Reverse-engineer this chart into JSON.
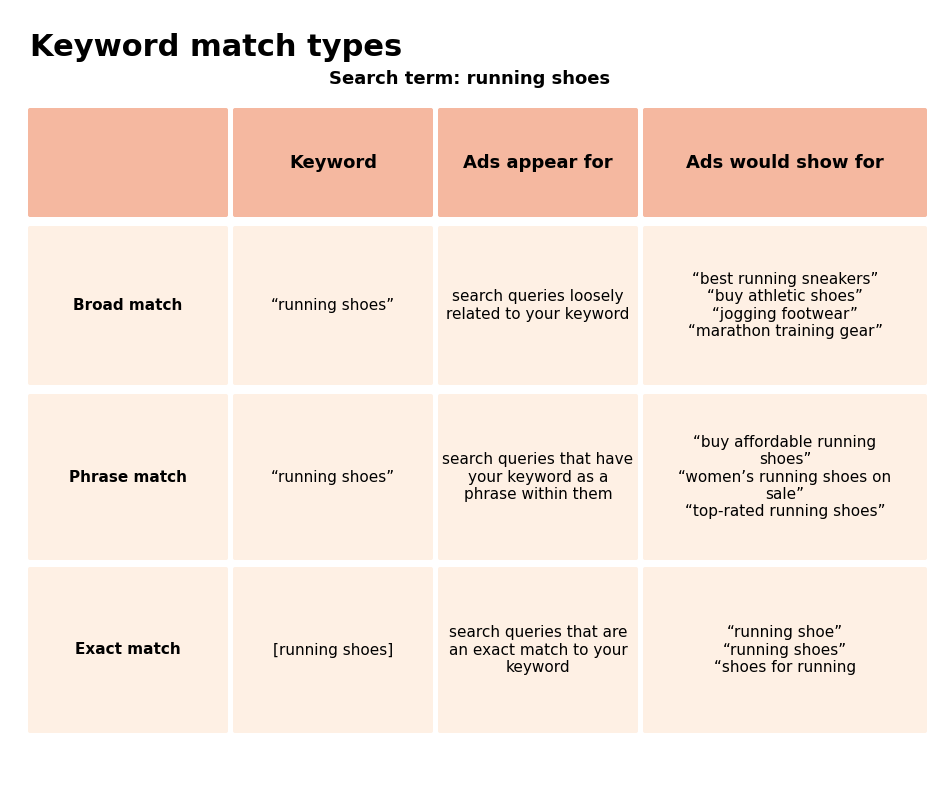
{
  "title": "Keyword match types",
  "subtitle": "Search term: running shoes",
  "background_color": "#ffffff",
  "header_bg": "#F5B8A0",
  "row_bg": "#FEF0E4",
  "header_row": {
    "labels": [
      "",
      "Keyword",
      "Ads appear for",
      "Ads would show for"
    ],
    "bold": [
      false,
      true,
      true,
      true
    ]
  },
  "rows": [
    {
      "cells": [
        {
          "text": "Broad match",
          "bold": true
        },
        {
          "text": "“running shoes”",
          "bold": false
        },
        {
          "text": "search queries loosely\nrelated to your keyword",
          "bold": false
        },
        {
          "text": "“best running sneakers”\n“buy athletic shoes”\n“jogging footwear”\n“marathon training gear”",
          "bold": false
        }
      ]
    },
    {
      "cells": [
        {
          "text": "Phrase match",
          "bold": true
        },
        {
          "text": "“running shoes”",
          "bold": false
        },
        {
          "text": "search queries that have\nyour keyword as a\nphrase within them",
          "bold": false
        },
        {
          "text": "“buy affordable running\nshoes”\n“women’s running shoes on\nsale”\n“top-rated running shoes”",
          "bold": false
        }
      ]
    },
    {
      "cells": [
        {
          "text": "Exact match",
          "bold": true
        },
        {
          "text": "[running shoes]",
          "bold": false
        },
        {
          "text": "search queries that are\nan exact match to your\nkeyword",
          "bold": false
        },
        {
          "text": "“running shoe”\n“running shoes”\n“shoes for running",
          "bold": false
        }
      ]
    }
  ]
}
